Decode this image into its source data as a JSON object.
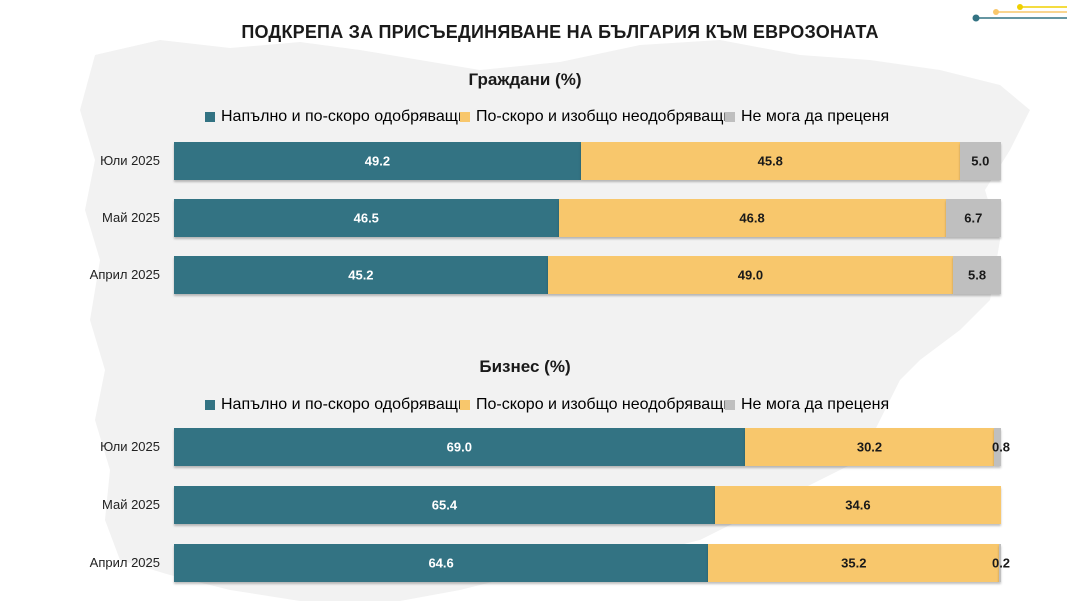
{
  "title": "ПОДКРЕПА ЗА ПРИСЪЕДИНЯВАНЕ НА БЪЛГАРИЯ КЪМ ЕВРОЗОНАТА",
  "colors": {
    "approve": "#337383",
    "disapprove": "#f8c76c",
    "unsure": "#bfbfbf",
    "map": "#f2f2f2"
  },
  "chart_data": [
    {
      "type": "bar",
      "stacked": true,
      "orientation": "horizontal",
      "title": "Граждани (%)",
      "categories": [
        "Юли 2025",
        "Май 2025",
        "Април 2025"
      ],
      "series": [
        {
          "name": "Напълно и по-скоро одобряващи",
          "values": [
            49.2,
            46.5,
            45.2
          ]
        },
        {
          "name": "По-скоро и изобщо неодобряващи",
          "values": [
            45.8,
            46.8,
            49.0
          ]
        },
        {
          "name": "Не мога да преценя",
          "values": [
            5.0,
            6.7,
            5.8
          ]
        }
      ],
      "labels": [
        [
          "49.2",
          "45.8",
          "5.0"
        ],
        [
          "46.5",
          "46.8",
          "6.7"
        ],
        [
          "45.2",
          "49.0",
          "5.8"
        ]
      ],
      "xlim": [
        0,
        100
      ],
      "legend_position": "top",
      "grid": false
    },
    {
      "type": "bar",
      "stacked": true,
      "orientation": "horizontal",
      "title": "Бизнес (%)",
      "categories": [
        "Юли 2025",
        "Май 2025",
        "Април 2025"
      ],
      "series": [
        {
          "name": "Напълно и по-скоро одобряващи",
          "values": [
            69.0,
            65.4,
            64.6
          ]
        },
        {
          "name": "По-скоро и изобщо неодобряващи",
          "values": [
            30.2,
            34.6,
            35.2
          ]
        },
        {
          "name": "Не мога да преценя",
          "values": [
            0.8,
            0.0,
            0.2
          ]
        }
      ],
      "labels": [
        [
          "69.0",
          "30.2",
          "0.8"
        ],
        [
          "65.4",
          "34.6",
          ""
        ],
        [
          "64.6",
          "35.2",
          "0.2"
        ]
      ],
      "xlim": [
        0,
        100
      ],
      "legend_position": "top",
      "grid": false
    }
  ]
}
